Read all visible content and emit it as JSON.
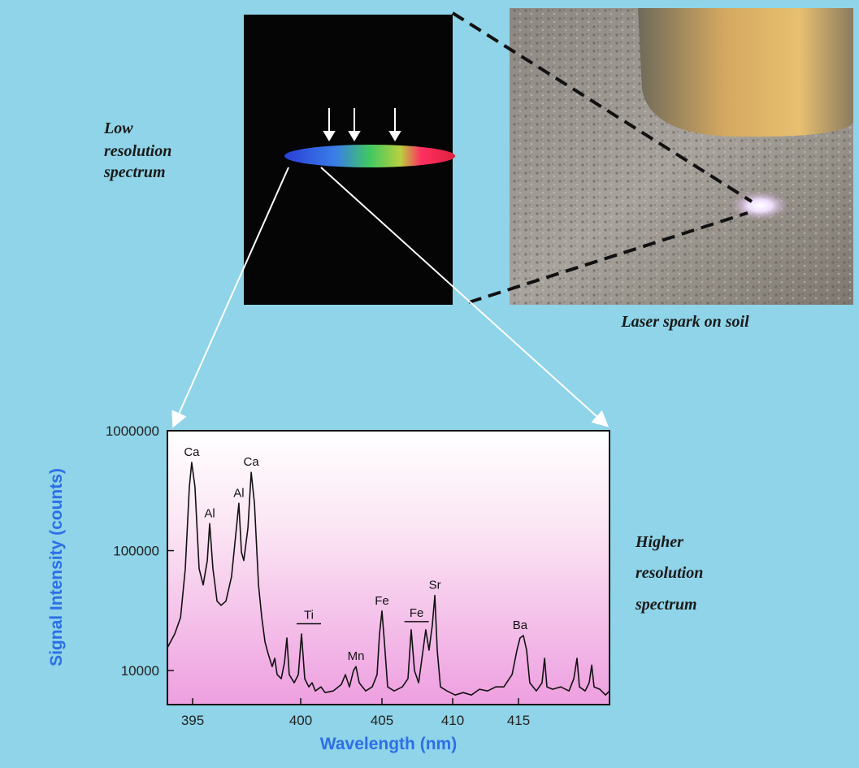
{
  "captions": {
    "low": [
      "Low",
      "resolution",
      "spectrum"
    ],
    "spark": "Laser spark on soil",
    "high": [
      "Higher",
      "resolution",
      "spectrum"
    ]
  },
  "chart_data": {
    "type": "line",
    "xlabel": "Wavelength (nm)",
    "ylabel": "Signal Intensity (counts)",
    "log_y": true,
    "color": "#111111",
    "xlim": [
      393.83,
      421.91
    ],
    "xticks": [
      395,
      400,
      405,
      410,
      415
    ],
    "ylim": [
      5200,
      1000000
    ],
    "yticks": [
      10000,
      100000,
      1000000
    ],
    "x": [
      393.83,
      394.17,
      394.44,
      394.66,
      394.85,
      394.96,
      395.11,
      395.3,
      395.49,
      395.68,
      395.79,
      395.94,
      396.13,
      396.32,
      396.54,
      396.8,
      396.99,
      397.14,
      397.26,
      397.37,
      397.56,
      397.71,
      397.86,
      398.05,
      398.2,
      398.35,
      398.5,
      398.68,
      398.8,
      398.91,
      399.1,
      399.25,
      399.36,
      399.47,
      399.7,
      399.89,
      400.05,
      400.25,
      400.5,
      400.7,
      400.9,
      401.25,
      401.5,
      402.0,
      402.5,
      402.75,
      403.0,
      403.25,
      403.4,
      403.6,
      404.0,
      404.4,
      404.7,
      404.85,
      405.0,
      405.17,
      405.4,
      405.86,
      406.44,
      406.84,
      407.07,
      407.3,
      407.59,
      407.87,
      408.1,
      408.33,
      408.56,
      408.74,
      408.91,
      409.14,
      409.6,
      410.19,
      410.8,
      411.42,
      412.04,
      412.65,
      413.27,
      413.89,
      414.51,
      414.88,
      415.12,
      415.37,
      415.62,
      415.86,
      416.36,
      416.79,
      416.98,
      417.16,
      417.59,
      418.21,
      418.83,
      419.2,
      419.44,
      419.63,
      420.06,
      420.37,
      420.56,
      420.74,
      421.17,
      421.61,
      421.91
    ],
    "values": [
      15500,
      20200,
      27700,
      70800,
      340000,
      543000,
      340000,
      70800,
      51800,
      82800,
      168000,
      70800,
      37900,
      35000,
      37900,
      60600,
      132000,
      248000,
      96900,
      82800,
      155000,
      450000,
      248000,
      51800,
      27700,
      17300,
      13700,
      10800,
      12650,
      9250,
      8550,
      11700,
      18700,
      9250,
      7910,
      9250,
      20200,
      8550,
      7310,
      7910,
      6760,
      7310,
      6550,
      6760,
      7660,
      9250,
      7310,
      10000,
      10800,
      7910,
      6760,
      7310,
      9250,
      20200,
      31400,
      17300,
      7310,
      6760,
      7310,
      8550,
      21900,
      10000,
      7910,
      13700,
      21900,
      14800,
      23700,
      42300,
      14800,
      7310,
      6760,
      6250,
      6550,
      6250,
      6980,
      6760,
      7310,
      7310,
      9250,
      14800,
      18700,
      19600,
      14800,
      7910,
      6760,
      7910,
      12650,
      7310,
      6980,
      7310,
      6760,
      8550,
      12650,
      7310,
      6760,
      7910,
      11100,
      7310,
      6980,
      6250,
      6760
    ],
    "annotations": [
      {
        "text": "Ca",
        "x": 394.96,
        "y": 543000
      },
      {
        "text": "Al",
        "x": 395.79,
        "y": 168000
      },
      {
        "text": "Al",
        "x": 397.14,
        "y": 248000
      },
      {
        "text": "Ca",
        "x": 397.71,
        "y": 450000
      },
      {
        "text": "Ti",
        "x": 400.5,
        "y": 21000,
        "bar": true
      },
      {
        "text": "Mn",
        "x": 403.4,
        "y": 10800
      },
      {
        "text": "Fe",
        "x": 405.0,
        "y": 31400
      },
      {
        "text": "Fe",
        "x": 407.45,
        "y": 21900,
        "bar": true
      },
      {
        "text": "Sr",
        "x": 408.74,
        "y": 42300
      },
      {
        "text": "Ba",
        "x": 415.12,
        "y": 19600
      }
    ]
  }
}
